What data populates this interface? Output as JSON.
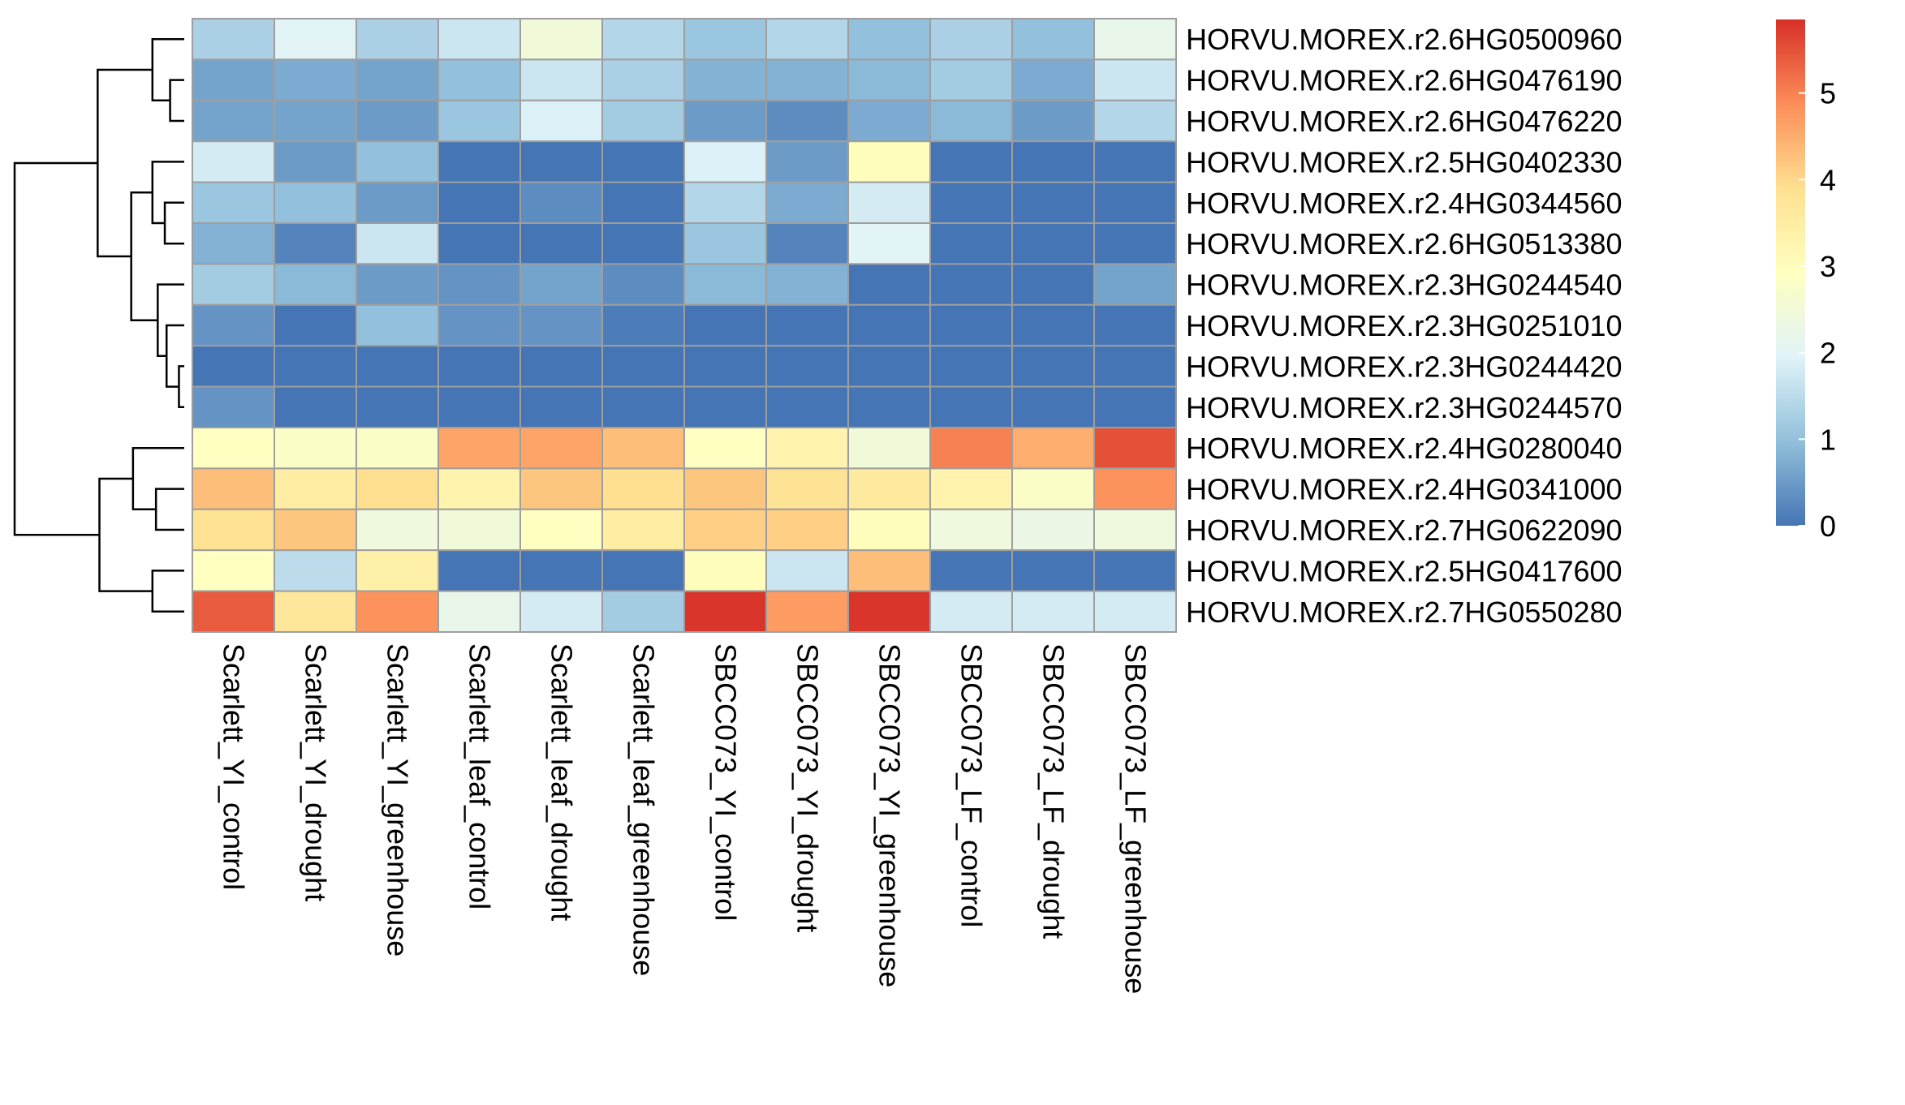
{
  "chart_data": {
    "type": "heatmap",
    "title": "",
    "xlabel": "",
    "ylabel": "",
    "rows": [
      "HORVU.MOREX.r2.6HG0500960",
      "HORVU.MOREX.r2.6HG0476190",
      "HORVU.MOREX.r2.6HG0476220",
      "HORVU.MOREX.r2.5HG0402330",
      "HORVU.MOREX.r2.4HG0344560",
      "HORVU.MOREX.r2.6HG0513380",
      "HORVU.MOREX.r2.3HG0244540",
      "HORVU.MOREX.r2.3HG0251010",
      "HORVU.MOREX.r2.3HG0244420",
      "HORVU.MOREX.r2.3HG0244570",
      "HORVU.MOREX.r2.4HG0280040",
      "HORVU.MOREX.r2.4HG0341000",
      "HORVU.MOREX.r2.7HG0622090",
      "HORVU.MOREX.r2.5HG0417600",
      "HORVU.MOREX.r2.7HG0550280"
    ],
    "columns": [
      "Scarlett_YI_control",
      "Scarlett_YI_drought",
      "Scarlett_YI_greenhouse",
      "Scarlett_leaf_control",
      "Scarlett_leaf_drought",
      "Scarlett_leaf_greenhouse",
      "SBCC073_YI_control",
      "SBCC073_YI_drought",
      "SBCC073_YI_greenhouse",
      "SBCC073_LF_control",
      "SBCC073_LF_drought",
      "SBCC073_LF_greenhouse"
    ],
    "values": [
      [
        1.3,
        2.0,
        1.3,
        1.7,
        2.5,
        1.4,
        1.1,
        1.4,
        1.0,
        1.3,
        1.0,
        2.2
      ],
      [
        0.6,
        0.7,
        0.6,
        1.0,
        1.7,
        1.3,
        0.8,
        0.8,
        0.9,
        1.2,
        0.7,
        1.7
      ],
      [
        0.6,
        0.6,
        0.5,
        1.1,
        1.9,
        1.2,
        0.5,
        0.3,
        0.7,
        0.9,
        0.5,
        1.4
      ],
      [
        1.8,
        0.5,
        1.0,
        0.0,
        0.0,
        0.0,
        1.9,
        0.5,
        3.0,
        0.0,
        0.0,
        0.0
      ],
      [
        1.1,
        1.0,
        0.5,
        0.0,
        0.3,
        0.0,
        1.4,
        0.7,
        1.8,
        0.0,
        0.0,
        0.0
      ],
      [
        0.8,
        0.2,
        1.7,
        0.0,
        0.0,
        0.0,
        1.1,
        0.2,
        2.0,
        0.0,
        0.0,
        0.0
      ],
      [
        1.2,
        0.9,
        0.5,
        0.4,
        0.6,
        0.3,
        0.9,
        0.8,
        0.0,
        0.0,
        0.0,
        0.6
      ],
      [
        0.4,
        0.0,
        1.0,
        0.4,
        0.4,
        0.1,
        0.0,
        0.0,
        0.0,
        0.0,
        0.0,
        0.0
      ],
      [
        0.0,
        0.0,
        0.0,
        0.0,
        0.0,
        0.0,
        0.0,
        0.0,
        0.0,
        0.0,
        0.0,
        0.0
      ],
      [
        0.4,
        0.0,
        0.0,
        0.0,
        0.0,
        0.0,
        0.0,
        0.0,
        0.0,
        0.0,
        0.0,
        0.0
      ],
      [
        2.9,
        2.8,
        2.8,
        4.6,
        4.6,
        4.3,
        2.9,
        3.3,
        2.5,
        5.0,
        4.5,
        5.5
      ],
      [
        4.3,
        3.5,
        3.9,
        3.3,
        4.2,
        3.9,
        4.2,
        3.8,
        3.6,
        3.3,
        2.8,
        4.8
      ],
      [
        3.8,
        4.2,
        2.4,
        2.5,
        2.9,
        3.5,
        4.1,
        4.1,
        3.0,
        2.4,
        2.3,
        2.4
      ],
      [
        2.9,
        1.5,
        3.4,
        0.0,
        0.0,
        0.0,
        3.0,
        1.7,
        4.3,
        0.0,
        0.0,
        0.0
      ],
      [
        5.4,
        3.7,
        4.8,
        2.2,
        1.8,
        1.2,
        5.8,
        4.7,
        5.8,
        1.8,
        1.8,
        1.8
      ]
    ],
    "legend": {
      "ticks": [
        0,
        1,
        2,
        3,
        4,
        5
      ],
      "range": [
        0,
        5.85
      ],
      "placement": "right",
      "colors": [
        "#4575B4",
        "#91BFDB",
        "#E0F3F8",
        "#FFFFBF",
        "#FEE090",
        "#FC8D59",
        "#D73027"
      ]
    },
    "cell_border_color": "#9E9E9E",
    "dendrogram": {
      "side": "left",
      "merges": [
        [
          -9,
          -10
        ],
        [
          -8,
          1
        ],
        [
          -7,
          2
        ],
        [
          -5,
          -6
        ],
        [
          -4,
          4
        ],
        [
          3,
          5
        ],
        [
          -2,
          -3
        ],
        [
          -1,
          7
        ],
        [
          6,
          8
        ],
        [
          -12,
          -13
        ],
        [
          -11,
          10
        ],
        [
          -14,
          -15
        ],
        [
          11,
          12
        ],
        [
          9,
          13
        ]
      ],
      "heights": [
        0.15,
        0.5,
        0.75,
        0.55,
        0.9,
        1.5,
        0.4,
        0.9,
        2.45,
        0.8,
        1.45,
        0.9,
        2.4,
        4.8
      ]
    }
  }
}
